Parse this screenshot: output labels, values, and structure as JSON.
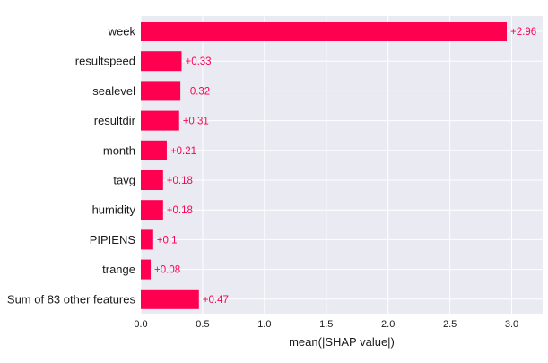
{
  "chart_data": {
    "type": "bar",
    "orientation": "horizontal",
    "categories": [
      "week",
      "resultspeed",
      "sealevel",
      "resultdir",
      "month",
      "tavg",
      "humidity",
      "PIPIENS",
      "trange",
      "Sum of 83 other features"
    ],
    "values": [
      2.96,
      0.33,
      0.32,
      0.31,
      0.21,
      0.18,
      0.18,
      0.1,
      0.08,
      0.47
    ],
    "data_labels": [
      "+2.96",
      "+0.33",
      "+0.32",
      "+0.31",
      "+0.21",
      "+0.18",
      "+0.18",
      "+0.1",
      "+0.08",
      "+0.47"
    ],
    "xlabel": "mean(|SHAP value|)",
    "ylabel": "",
    "title": "",
    "xlim": [
      0,
      3.25
    ],
    "x_ticks": [
      0.0,
      0.5,
      1.0,
      1.5,
      2.0,
      2.5,
      3.0
    ],
    "x_tick_labels": [
      "0.0",
      "0.5",
      "1.0",
      "1.5",
      "2.0",
      "2.5",
      "3.0"
    ],
    "grid": true,
    "colors": {
      "bar": "#ff0051",
      "label": "#ff0051",
      "plot_background": "#eaeaf2",
      "grid": "#ffffff"
    }
  }
}
